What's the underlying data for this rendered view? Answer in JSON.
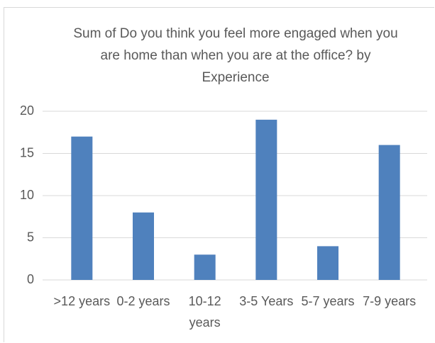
{
  "chart_data": {
    "type": "bar",
    "title": "Sum of Do you think you feel more engaged when you are home than when you are at the office? by Experience",
    "categories": [
      ">12 years",
      "0-2 years",
      "10-12 years",
      "3-5 Years",
      "5-7 years",
      "7-9 years"
    ],
    "values": [
      17,
      8,
      3,
      19,
      4,
      16
    ],
    "color": "#4f81bd",
    "ylim": [
      0,
      20
    ],
    "yticks": [
      0,
      5,
      10,
      15,
      20
    ],
    "grid": true
  }
}
